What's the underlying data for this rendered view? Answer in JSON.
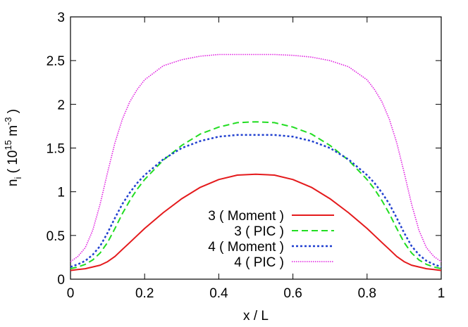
{
  "chart_data": {
    "type": "line",
    "title": "",
    "xlabel": "x / L",
    "ylabel": {
      "base": "n",
      "sub": "i",
      "open": " ( 10",
      "exp": "15",
      "unit": " m",
      "unit_exp": "-3",
      "close": " )"
    },
    "xlim": [
      0,
      1
    ],
    "ylim": [
      0,
      3
    ],
    "xticks": [
      0,
      0.2,
      0.4,
      0.6,
      0.8,
      1
    ],
    "xtick_labels": [
      "0",
      "0.2",
      "0.4",
      "0.6",
      "0.8",
      "1"
    ],
    "yticks": [
      0,
      0.5,
      1,
      1.5,
      2,
      2.5,
      3
    ],
    "ytick_labels": [
      "0",
      "0.5",
      "1",
      "1.5",
      "2",
      "2.5",
      "3"
    ],
    "grid": false,
    "legend_position": "bottom-center",
    "x": [
      0,
      0.02,
      0.04,
      0.06,
      0.08,
      0.1,
      0.12,
      0.14,
      0.16,
      0.18,
      0.2,
      0.25,
      0.3,
      0.35,
      0.4,
      0.45,
      0.5,
      0.55,
      0.6,
      0.65,
      0.7,
      0.75,
      0.8,
      0.82,
      0.84,
      0.86,
      0.88,
      0.9,
      0.92,
      0.94,
      0.96,
      0.98,
      1.0
    ],
    "series": [
      {
        "name": "3 ( Moment )",
        "color": "#e41a1c",
        "dash": "solid",
        "values": [
          0.1,
          0.11,
          0.12,
          0.14,
          0.16,
          0.2,
          0.26,
          0.34,
          0.42,
          0.5,
          0.58,
          0.76,
          0.92,
          1.05,
          1.14,
          1.19,
          1.2,
          1.19,
          1.14,
          1.05,
          0.92,
          0.76,
          0.58,
          0.5,
          0.42,
          0.34,
          0.26,
          0.2,
          0.16,
          0.14,
          0.12,
          0.11,
          0.1
        ]
      },
      {
        "name": "3 ( PIC )",
        "color": "#22dd22",
        "dash": "dashed",
        "values": [
          0.12,
          0.14,
          0.17,
          0.22,
          0.3,
          0.42,
          0.58,
          0.75,
          0.9,
          1.03,
          1.14,
          1.36,
          1.53,
          1.66,
          1.74,
          1.79,
          1.8,
          1.79,
          1.74,
          1.66,
          1.53,
          1.36,
          1.14,
          1.03,
          0.9,
          0.75,
          0.58,
          0.42,
          0.3,
          0.22,
          0.17,
          0.14,
          0.12
        ]
      },
      {
        "name": "4 ( Moment )",
        "color": "#1f3fcf",
        "dash": "dotted",
        "values": [
          0.14,
          0.17,
          0.21,
          0.28,
          0.38,
          0.53,
          0.7,
          0.86,
          0.99,
          1.1,
          1.19,
          1.37,
          1.5,
          1.58,
          1.63,
          1.65,
          1.65,
          1.65,
          1.63,
          1.58,
          1.5,
          1.37,
          1.19,
          1.1,
          0.99,
          0.86,
          0.7,
          0.53,
          0.38,
          0.28,
          0.21,
          0.17,
          0.14
        ]
      },
      {
        "name": "4 ( PIC )",
        "color": "#e020e0",
        "dash": "fine-dotted",
        "values": [
          0.2,
          0.26,
          0.36,
          0.56,
          0.86,
          1.22,
          1.56,
          1.83,
          2.03,
          2.17,
          2.28,
          2.44,
          2.51,
          2.55,
          2.57,
          2.57,
          2.57,
          2.57,
          2.56,
          2.54,
          2.5,
          2.43,
          2.28,
          2.17,
          2.03,
          1.83,
          1.56,
          1.22,
          0.86,
          0.56,
          0.36,
          0.26,
          0.2
        ]
      }
    ]
  }
}
